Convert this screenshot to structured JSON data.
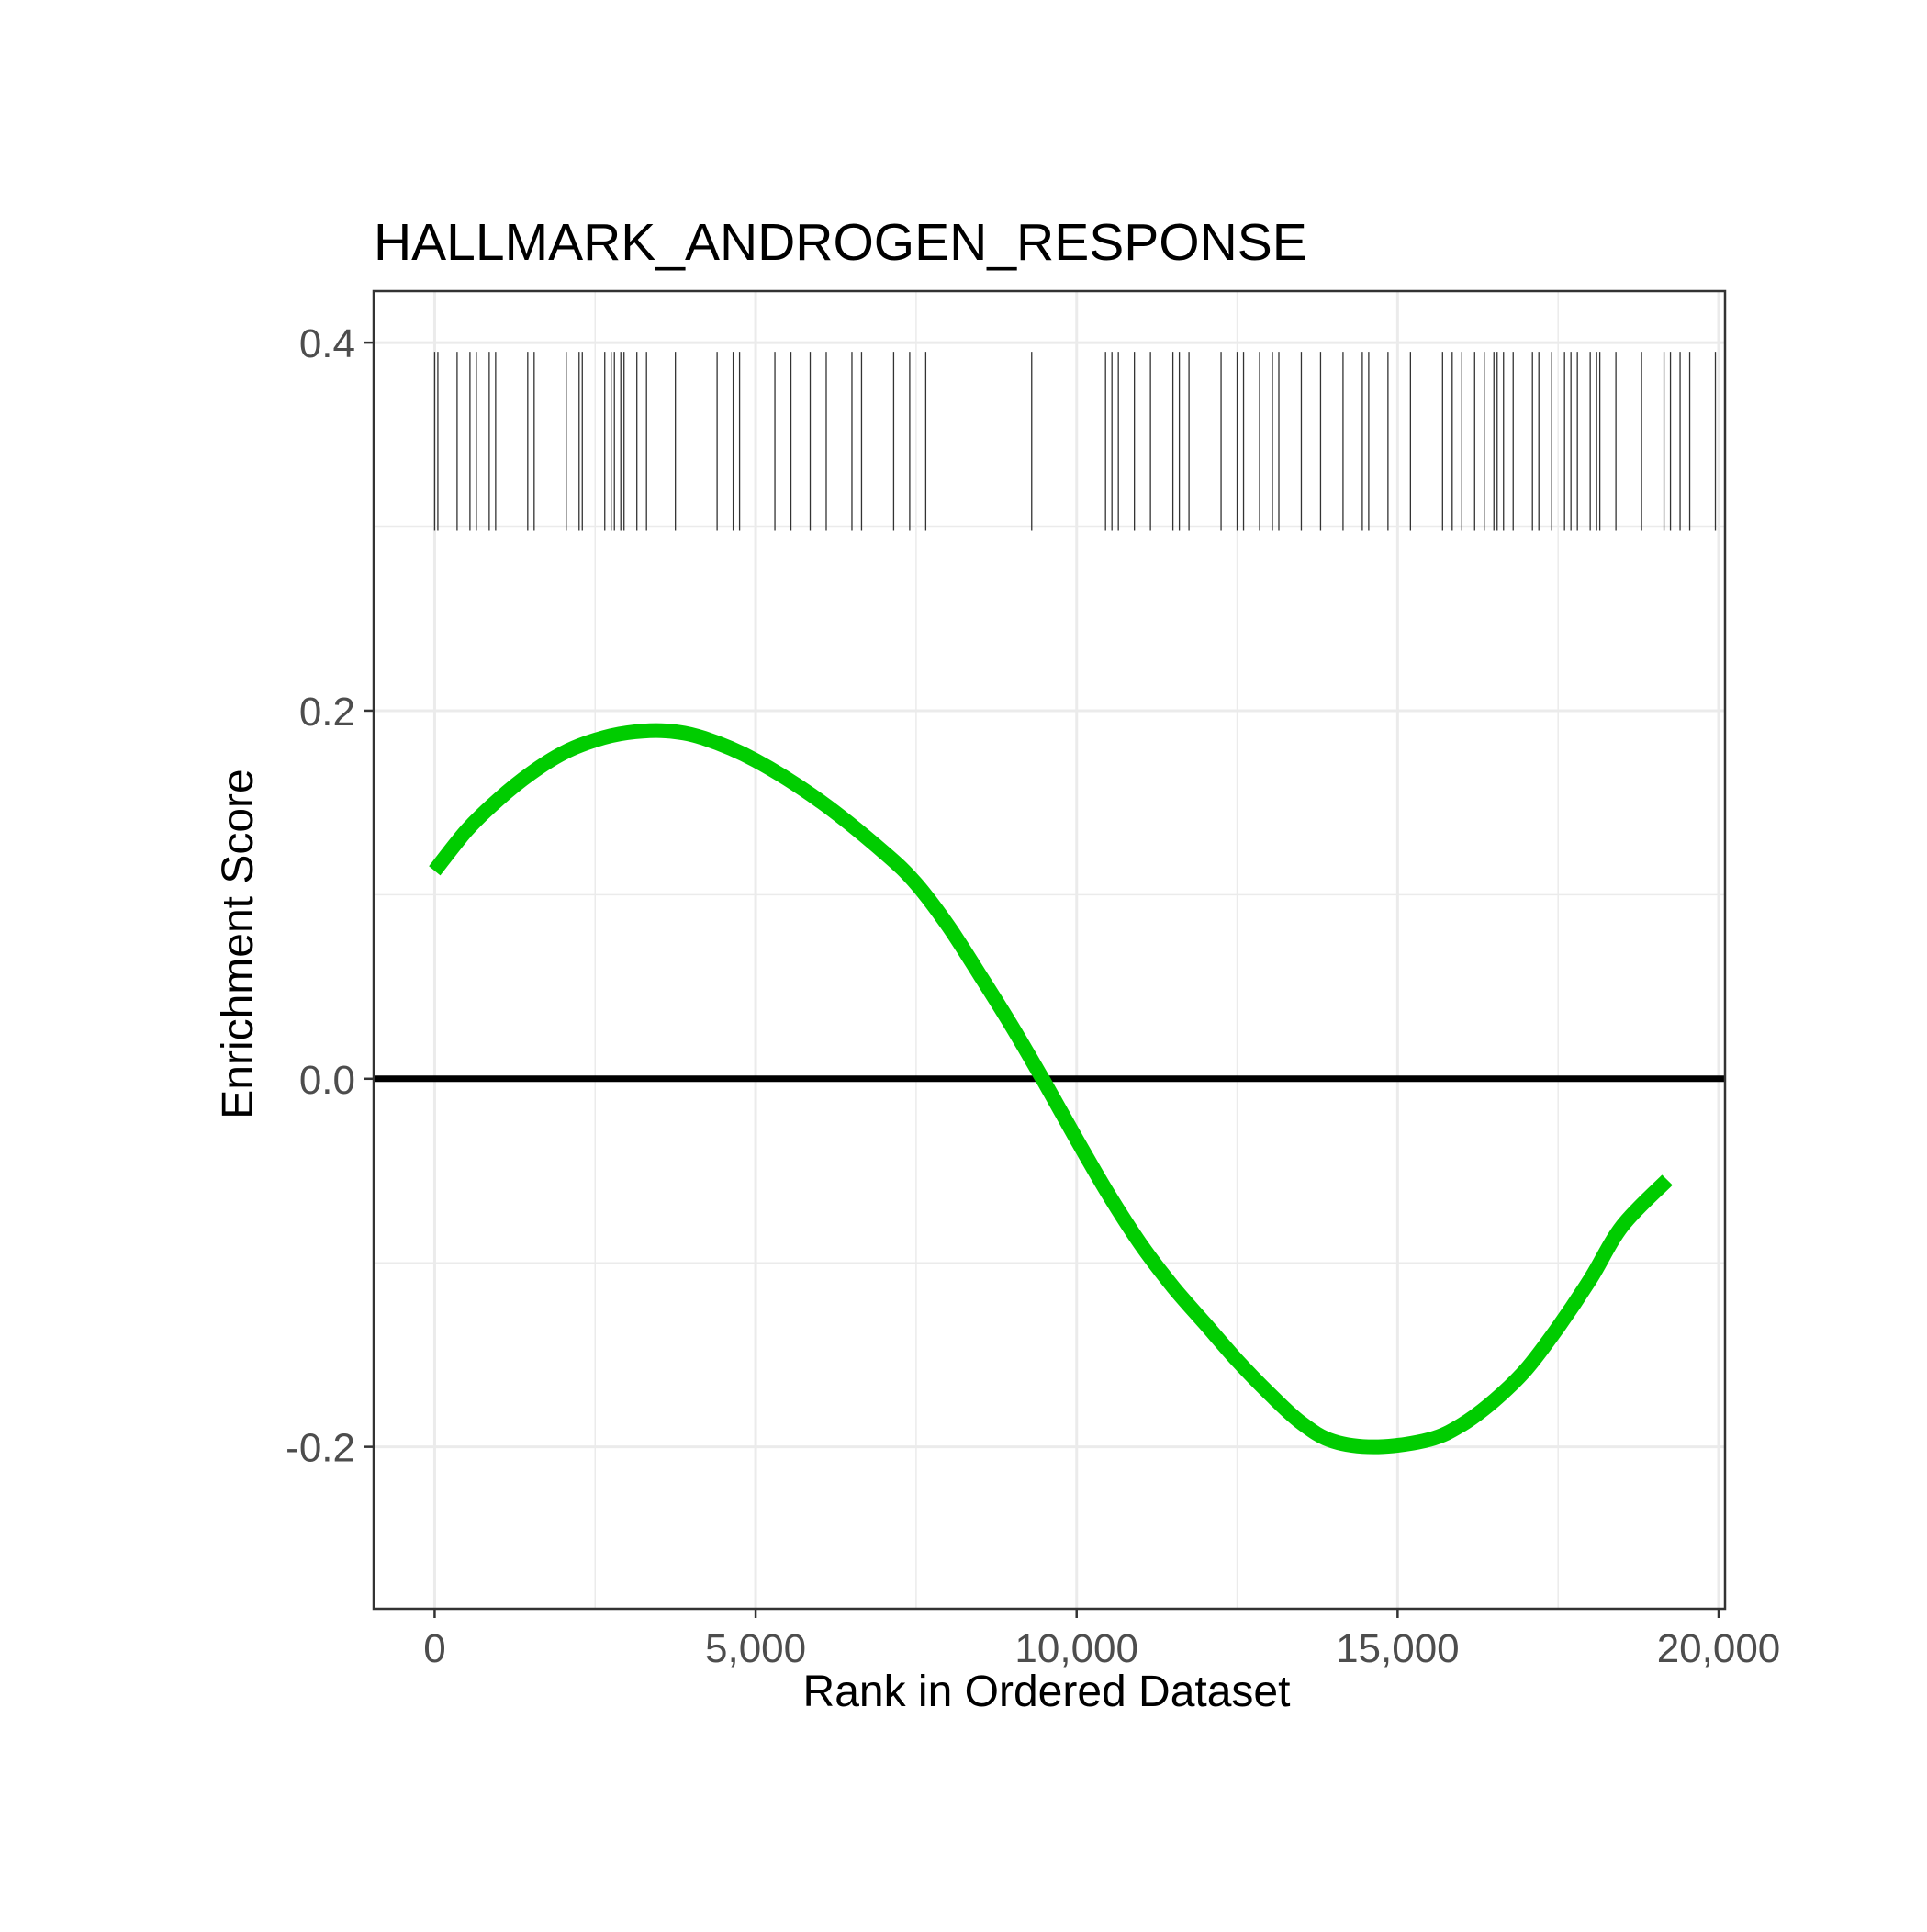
{
  "chart_data": {
    "type": "line",
    "title": "HALLMARK_ANDROGEN_RESPONSE",
    "xlabel": "Rank in Ordered Dataset",
    "ylabel": "Enrichment Score",
    "xlim": [
      -950,
      20100
    ],
    "ylim": [
      -0.288,
      0.428
    ],
    "x_ticks": [
      0,
      5000,
      10000,
      15000,
      20000
    ],
    "x_tick_labels": [
      "0",
      "5,000",
      "10,000",
      "15,000",
      "20,000"
    ],
    "y_ticks": [
      -0.2,
      0.0,
      0.2,
      0.4
    ],
    "y_tick_labels": [
      "-0.2",
      "0.0",
      "0.2",
      "0.4"
    ],
    "grid": true,
    "zero_line": true,
    "series": [
      {
        "color": "#00cc00",
        "x": [
          0,
          500,
          1000,
          1500,
          2000,
          2500,
          3000,
          3600,
          4200,
          5000,
          6000,
          7000,
          7500,
          8000,
          8500,
          9000,
          9500,
          10000,
          10500,
          11000,
          11500,
          12000,
          12500,
          13000,
          13500,
          14000,
          14700,
          15500,
          16000,
          16500,
          17000,
          17500,
          18000,
          18500,
          19200
        ],
        "y": [
          0.113,
          0.135,
          0.152,
          0.166,
          0.177,
          0.184,
          0.188,
          0.189,
          0.185,
          0.173,
          0.151,
          0.123,
          0.106,
          0.083,
          0.056,
          0.028,
          -0.002,
          -0.033,
          -0.063,
          -0.09,
          -0.113,
          -0.133,
          -0.153,
          -0.171,
          -0.187,
          -0.197,
          -0.2,
          -0.196,
          -0.188,
          -0.175,
          -0.158,
          -0.135,
          -0.109,
          -0.08,
          -0.055
        ]
      }
    ],
    "gene_hits": [
      0,
      50,
      350,
      550,
      650,
      850,
      950,
      1450,
      1550,
      2050,
      2250,
      2300,
      2650,
      2750,
      2800,
      2900,
      2950,
      3150,
      3300,
      3750,
      4400,
      4650,
      4750,
      5300,
      5550,
      5850,
      6100,
      6500,
      6650,
      7150,
      7400,
      7650,
      9300,
      10450,
      10550,
      10650,
      10900,
      11150,
      11500,
      11600,
      11750,
      12250,
      12500,
      12600,
      12850,
      13050,
      13150,
      13500,
      13800,
      14150,
      14450,
      14550,
      14850,
      15200,
      15700,
      15850,
      16000,
      16200,
      16350,
      16500,
      16550,
      16650,
      16800,
      17100,
      17200,
      17400,
      17600,
      17700,
      17800,
      18000,
      18100,
      18150,
      18400,
      18800,
      19150,
      19250,
      19400,
      19550,
      19950
    ]
  }
}
